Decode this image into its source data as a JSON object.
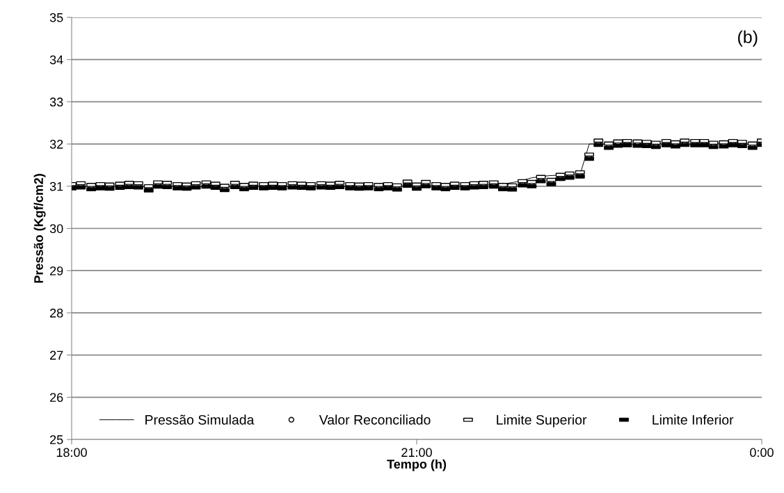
{
  "chart_data": {
    "type": "scatter",
    "xlabel": "Tempo (h)",
    "ylabel": "Pressão (Kgf/cm2)",
    "annotations": [
      "(b)"
    ],
    "x": [
      18,
      18.08,
      18.17,
      18.25,
      18.33,
      18.42,
      18.5,
      18.58,
      18.67,
      18.75,
      18.83,
      18.92,
      19,
      19.08,
      19.17,
      19.25,
      19.33,
      19.42,
      19.5,
      19.58,
      19.67,
      19.75,
      19.83,
      19.92,
      20,
      20.08,
      20.17,
      20.25,
      20.33,
      20.42,
      20.5,
      20.58,
      20.67,
      20.75,
      20.83,
      20.92,
      21,
      21.08,
      21.17,
      21.25,
      21.33,
      21.42,
      21.5,
      21.58,
      21.67,
      21.75,
      21.83,
      21.92,
      22,
      22.08,
      22.17,
      22.25,
      22.33,
      22.42,
      22.5,
      22.58,
      22.67,
      22.75,
      22.83,
      22.92,
      23,
      23.08,
      23.17,
      23.25,
      23.33,
      23.42,
      23.5,
      23.58,
      23.67,
      23.75,
      23.83,
      23.92,
      24
    ],
    "series": [
      {
        "name": "Pressão Simulada",
        "type": "line",
        "color": "#000000",
        "marker": "none",
        "line_style": "solid",
        "x": [
          18,
          21.5,
          21.6,
          21.75,
          21.9,
          22.0,
          22.15,
          22.3,
          22.42,
          22.5,
          24
        ],
        "values": [
          31.0,
          31.0,
          31.03,
          31.05,
          31.12,
          31.2,
          31.25,
          31.27,
          31.27,
          32.0,
          32.0
        ]
      },
      {
        "name": "Valor Reconciliado",
        "color": "#000000",
        "marker": "circle",
        "values": [
          31.0,
          31.02,
          30.98,
          31.0,
          30.99,
          31.01,
          31.03,
          31.02,
          30.95,
          31.04,
          31.03,
          31.0,
          30.99,
          31.02,
          31.04,
          31.01,
          30.96,
          31.03,
          30.98,
          31.01,
          31.0,
          31.01,
          31.0,
          31.02,
          31.01,
          31.0,
          31.02,
          31.01,
          31.03,
          31.0,
          30.99,
          31.0,
          30.98,
          31.0,
          30.97,
          31.06,
          30.99,
          31.05,
          31.0,
          30.98,
          31.01,
          31.0,
          31.02,
          31.03,
          31.04,
          30.98,
          30.97,
          31.07,
          31.05,
          31.17,
          31.1,
          31.22,
          31.25,
          31.28,
          31.7,
          32.03,
          31.96,
          32.01,
          32.02,
          32.01,
          32.0,
          31.98,
          32.02,
          31.99,
          32.03,
          32.02,
          32.02,
          31.98,
          31.99,
          32.02,
          32.0,
          31.96,
          32.03
        ]
      },
      {
        "name": "Limite Superior",
        "color": "#000000",
        "marker": "square",
        "values": [
          31.05,
          31.07,
          31.03,
          31.05,
          31.04,
          31.06,
          31.08,
          31.07,
          31.0,
          31.09,
          31.08,
          31.05,
          31.04,
          31.07,
          31.09,
          31.06,
          31.01,
          31.08,
          31.03,
          31.06,
          31.05,
          31.06,
          31.05,
          31.07,
          31.06,
          31.05,
          31.07,
          31.06,
          31.08,
          31.05,
          31.04,
          31.05,
          31.03,
          31.05,
          31.02,
          31.11,
          31.04,
          31.1,
          31.05,
          31.03,
          31.06,
          31.05,
          31.07,
          31.08,
          31.09,
          31.03,
          31.02,
          31.12,
          31.1,
          31.22,
          31.15,
          31.27,
          31.3,
          31.33,
          31.75,
          32.08,
          32.01,
          32.06,
          32.07,
          32.06,
          32.05,
          32.03,
          32.07,
          32.04,
          32.08,
          32.07,
          32.07,
          32.03,
          32.04,
          32.07,
          32.05,
          32.01,
          32.08
        ]
      },
      {
        "name": "Limite Inferior",
        "color": "#000000",
        "marker": "square",
        "values": [
          30.95,
          30.97,
          30.93,
          30.95,
          30.94,
          30.96,
          30.98,
          30.97,
          30.9,
          30.99,
          30.98,
          30.95,
          30.94,
          30.97,
          30.99,
          30.96,
          30.91,
          30.98,
          30.93,
          30.96,
          30.95,
          30.96,
          30.95,
          30.97,
          30.96,
          30.95,
          30.97,
          30.96,
          30.98,
          30.95,
          30.94,
          30.95,
          30.93,
          30.95,
          30.92,
          31.01,
          30.94,
          31.0,
          30.95,
          30.93,
          30.96,
          30.95,
          30.97,
          30.98,
          30.99,
          30.93,
          30.92,
          31.02,
          31.0,
          31.12,
          31.05,
          31.17,
          31.2,
          31.23,
          31.65,
          31.98,
          31.91,
          31.96,
          31.97,
          31.96,
          31.95,
          31.93,
          31.97,
          31.94,
          31.98,
          31.97,
          31.97,
          31.93,
          31.94,
          31.97,
          31.95,
          31.91,
          31.98
        ]
      }
    ],
    "xlim": [
      18,
      24
    ],
    "xticks": [
      {
        "value": 18,
        "label": "18:00"
      },
      {
        "value": 21,
        "label": "21:00"
      },
      {
        "value": 24,
        "label": "0:00"
      }
    ],
    "ylim": [
      25,
      35
    ],
    "yticks": [
      25,
      26,
      27,
      28,
      29,
      30,
      31,
      32,
      33,
      34,
      35
    ],
    "grid": "y",
    "legend": "bottom"
  }
}
